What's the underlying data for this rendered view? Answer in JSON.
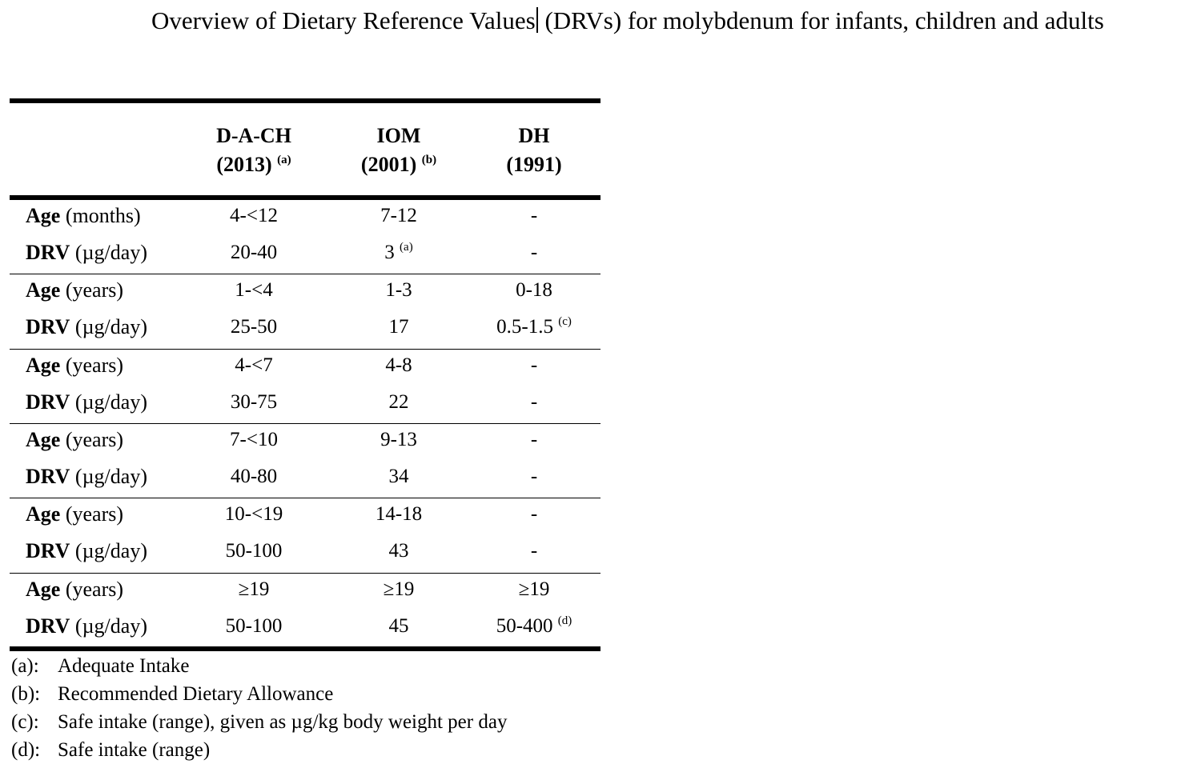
{
  "title": {
    "part1": "Overview of Dietary Reference Values",
    "part2": " (DRVs) for molybdenum for infants, children and adults"
  },
  "table": {
    "headers": [
      {
        "name": "D-A-CH",
        "year": "(2013)",
        "note": "(a)"
      },
      {
        "name": "IOM",
        "year": "(2001)",
        "note": "(b)"
      },
      {
        "name": "DH",
        "year": "(1991)",
        "note": ""
      }
    ],
    "groups": [
      {
        "age_label": "Age",
        "age_unit": " (months)",
        "age_values": [
          "4-<12",
          "7-12",
          "-"
        ],
        "drv_label": "DRV",
        "drv_unit": " (µg/day)",
        "drv_values": [
          "20-40",
          "3",
          "-"
        ],
        "drv_notes": [
          "",
          "(a)",
          ""
        ]
      },
      {
        "age_label": "Age",
        "age_unit": " (years)",
        "age_values": [
          "1-<4",
          "1-3",
          "0-18"
        ],
        "drv_label": "DRV",
        "drv_unit": " (µg/day)",
        "drv_values": [
          "25-50",
          "17",
          "0.5-1.5"
        ],
        "drv_notes": [
          "",
          "",
          "(c)"
        ]
      },
      {
        "age_label": "Age",
        "age_unit": " (years)",
        "age_values": [
          "4-<7",
          "4-8",
          "-"
        ],
        "drv_label": "DRV",
        "drv_unit": " (µg/day)",
        "drv_values": [
          "30-75",
          "22",
          "-"
        ],
        "drv_notes": [
          "",
          "",
          ""
        ]
      },
      {
        "age_label": "Age",
        "age_unit": " (years)",
        "age_values": [
          "7-<10",
          "9-13",
          "-"
        ],
        "drv_label": "DRV",
        "drv_unit": " (µg/day)",
        "drv_values": [
          "40-80",
          "34",
          "-"
        ],
        "drv_notes": [
          "",
          "",
          ""
        ]
      },
      {
        "age_label": "Age",
        "age_unit": " (years)",
        "age_values": [
          "10-<19",
          "14-18",
          "-"
        ],
        "drv_label": "DRV",
        "drv_unit": " (µg/day)",
        "drv_values": [
          "50-100",
          "43",
          "-"
        ],
        "drv_notes": [
          "",
          "",
          ""
        ]
      },
      {
        "age_label": "Age",
        "age_unit": " (years)",
        "age_values": [
          "≥19",
          "≥19",
          "≥19"
        ],
        "drv_label": "DRV",
        "drv_unit": " (µg/day)",
        "drv_values": [
          "50-100",
          "45",
          "50-400"
        ],
        "drv_notes": [
          "",
          "",
          "(d)"
        ]
      }
    ]
  },
  "footnotes": [
    {
      "key": "(a):",
      "text": "Adequate Intake"
    },
    {
      "key": "(b):",
      "text": "Recommended Dietary Allowance"
    },
    {
      "key": "(c):",
      "text": "Safe intake (range), given as µg/kg body weight per day"
    },
    {
      "key": "(d):",
      "text": "Safe intake (range)"
    }
  ]
}
